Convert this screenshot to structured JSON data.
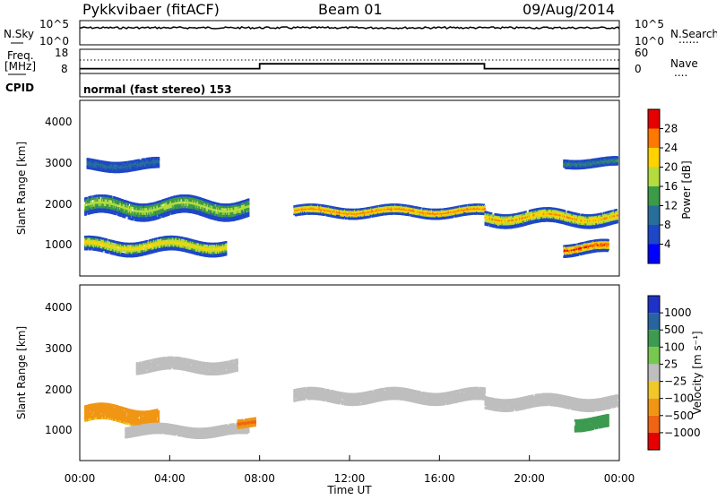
{
  "header": {
    "station": "Pykkvibaer (fitACF)",
    "beam": "Beam 01",
    "date": "09/Aug/2014"
  },
  "noise_panel": {
    "left_label": "N.Sky",
    "left_ticks": [
      "10^5",
      "10^0"
    ],
    "right_ticks": [
      "10^5",
      "10^0"
    ],
    "right_label": "N.Search",
    "right_legend": "......"
  },
  "freq_panel": {
    "left_label_1": "Freq.",
    "left_label_2": "[MHz]",
    "left_ticks": [
      "18",
      "8"
    ],
    "right_ticks": [
      "60",
      "0"
    ],
    "right_label": "Nave",
    "right_legend": "...."
  },
  "cpid_panel": {
    "label": "CPID",
    "text": "normal (fast stereo) 153"
  },
  "power_panel": {
    "ylabel": "Slant Range [km]",
    "y_ticks": [
      "4000",
      "3000",
      "2000",
      "1000"
    ],
    "colorbar_label": "Power [dB]",
    "colorbar_ticks": [
      "28",
      "24",
      "20",
      "16",
      "12",
      "8",
      "4"
    ],
    "colorbar_colors": [
      "#e60000",
      "#ff7800",
      "#ffd200",
      "#b4dc3c",
      "#3c9b46",
      "#286e9b",
      "#1e46c8",
      "#0000ff"
    ]
  },
  "velocity_panel": {
    "ylabel": "Slant Range [km]",
    "y_ticks": [
      "4000",
      "3000",
      "2000",
      "1000"
    ],
    "colorbar_label": "Velocity [m s⁻¹]",
    "colorbar_ticks": [
      "1000",
      "500",
      "100",
      "25",
      "−25",
      "−100",
      "−500",
      "−1000"
    ],
    "colorbar_colors": [
      "#1e32c8",
      "#2864a0",
      "#3c9b50",
      "#78c850",
      "#bebebe",
      "#f0c828",
      "#f09614",
      "#f06414",
      "#e60000"
    ]
  },
  "x_axis": {
    "label": "Time UT",
    "ticks": [
      "00:00",
      "04:00",
      "08:00",
      "12:00",
      "16:00",
      "20:00",
      "00:00"
    ]
  },
  "chart_data": {
    "type": "heatmap",
    "x_range_hours": [
      0,
      24
    ],
    "y_range_km": [
      180,
      4500
    ],
    "frequency_MHz": [
      {
        "from_h": 0,
        "to_h": 8,
        "value": 10
      },
      {
        "from_h": 8,
        "to_h": 18,
        "value": 12
      },
      {
        "from_h": 18,
        "to_h": 24,
        "value": 10
      }
    ],
    "power_bands": [
      {
        "t0": 0.2,
        "t1": 7.5,
        "r_center_km": 1850,
        "r_width_km": 450,
        "level_dB": 16
      },
      {
        "t0": 0.2,
        "t1": 6.5,
        "r_center_km": 900,
        "r_width_km": 350,
        "level_dB": 20
      },
      {
        "t0": 0.3,
        "t1": 3.5,
        "r_center_km": 2900,
        "r_width_km": 250,
        "level_dB": 8
      },
      {
        "t0": 9.5,
        "t1": 18,
        "r_center_km": 1750,
        "r_width_km": 250,
        "level_dB": 24
      },
      {
        "t0": 18,
        "t1": 23.9,
        "r_center_km": 1600,
        "r_width_km": 350,
        "level_dB": 22
      },
      {
        "t0": 21.5,
        "t1": 23.9,
        "r_center_km": 2950,
        "r_width_km": 200,
        "level_dB": 10
      },
      {
        "t0": 21.5,
        "t1": 23.5,
        "r_center_km": 850,
        "r_width_km": 300,
        "level_dB": 26
      }
    ],
    "velocity_bands": [
      {
        "t0": 0.2,
        "t1": 3.5,
        "r_center_km": 1300,
        "r_width_km": 400,
        "velocity": -150
      },
      {
        "t0": 2.5,
        "t1": 7.0,
        "r_center_km": 2500,
        "r_width_km": 300,
        "velocity": 0
      },
      {
        "t0": 2.0,
        "t1": 7.5,
        "r_center_km": 900,
        "r_width_km": 250,
        "velocity": 0
      },
      {
        "t0": 9.5,
        "t1": 18,
        "r_center_km": 1750,
        "r_width_km": 300,
        "velocity": 0
      },
      {
        "t0": 18,
        "t1": 23.9,
        "r_center_km": 1600,
        "r_width_km": 300,
        "velocity": 0
      },
      {
        "t0": 22.0,
        "t1": 23.5,
        "r_center_km": 1100,
        "r_width_km": 300,
        "velocity": 200
      },
      {
        "t0": 7.0,
        "t1": 7.8,
        "r_center_km": 1100,
        "r_width_km": 200,
        "velocity": -400
      }
    ]
  }
}
